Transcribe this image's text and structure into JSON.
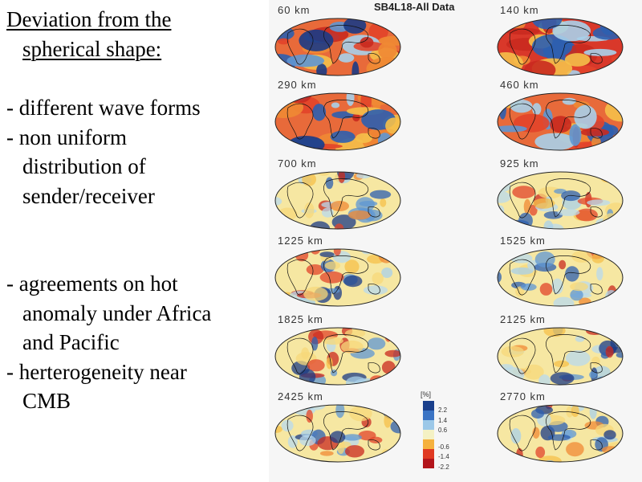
{
  "title_lines": [
    "Deviation from the",
    "spherical shape:"
  ],
  "bullets_group1": [
    "-  different wave forms",
    "-  non uniform",
    "distribution of",
    "sender/receiver"
  ],
  "bullets_group2": [
    "-  agreements on hot",
    "anomaly under Africa",
    "and Pacific",
    "-  herterogeneity near",
    "CMB"
  ],
  "figure": {
    "title": "SB4L18-All Data",
    "maps": [
      {
        "depth": "60  km"
      },
      {
        "depth": "140  km"
      },
      {
        "depth": "290  km"
      },
      {
        "depth": "460  km"
      },
      {
        "depth": "700  km"
      },
      {
        "depth": "925  km"
      },
      {
        "depth": "1225  km"
      },
      {
        "depth": "1525  km"
      },
      {
        "depth": "1825  km"
      },
      {
        "depth": "2125  km"
      },
      {
        "depth": "2425  km"
      },
      {
        "depth": "2770  km"
      }
    ],
    "scale": {
      "label": "[%]",
      "ticks": [
        "2.2",
        "1.4",
        "0.6",
        "-0.6",
        "-1.4",
        "-2.2"
      ],
      "colors": [
        "#1a3f8c",
        "#3b74c4",
        "#9cc8e8",
        "#f4f1c4",
        "#f5b13e",
        "#e03a22",
        "#b3151b"
      ]
    }
  }
}
